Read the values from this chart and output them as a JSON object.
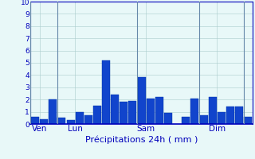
{
  "values": [
    0.6,
    0.4,
    2.0,
    0.5,
    0.3,
    1.0,
    0.7,
    1.5,
    5.2,
    2.4,
    1.8,
    1.9,
    3.8,
    2.1,
    2.2,
    0.9,
    0.0,
    0.6,
    2.1,
    0.7,
    2.2,
    1.0,
    1.4,
    1.4,
    0.6
  ],
  "day_labels": [
    "Ven",
    "Lun",
    "Sam",
    "Dim"
  ],
  "day_positions": [
    0.5,
    4.5,
    12.5,
    20.5
  ],
  "bar_color": "#1144cc",
  "bar_edge_color": "#0033aa",
  "bg_color": "#e8f8f8",
  "grid_color": "#aacccc",
  "axis_color": "#0000bb",
  "vline_color": "#6688aa",
  "xlabel": "Précipitations 24h ( mm )",
  "ylim": [
    0,
    10
  ],
  "yticks": [
    0,
    1,
    2,
    3,
    4,
    5,
    6,
    7,
    8,
    9,
    10
  ],
  "xlabel_fontsize": 8,
  "tick_fontsize": 6.5,
  "label_fontsize": 7.5
}
